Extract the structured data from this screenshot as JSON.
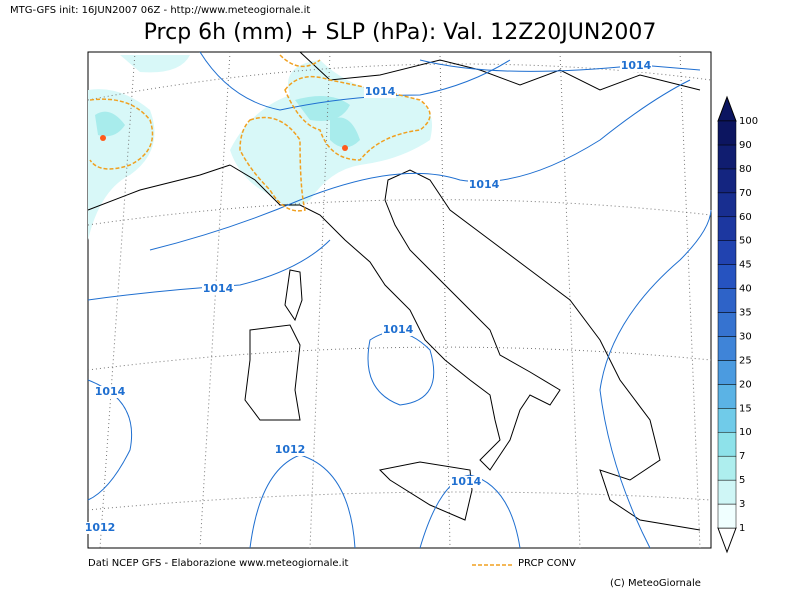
{
  "header": {
    "info": "MTG-GFS init: 16JUN2007 06Z - http://www.meteogiornale.it",
    "title": "Prcp 6h (mm) + SLP (hPa): Val. 12Z20JUN2007"
  },
  "isobar_labels": [
    "1014",
    "1014",
    "1014",
    "1014",
    "1014",
    "1014",
    "1012",
    "1014",
    "1012"
  ],
  "colorbar": {
    "labels": [
      1,
      3,
      5,
      7,
      10,
      15,
      20,
      25,
      30,
      35,
      40,
      45,
      50,
      60,
      70,
      80,
      90,
      100
    ],
    "colors": [
      "#f0ffff",
      "#cff6f6",
      "#aeeeee",
      "#8ee2ea",
      "#70cbe9",
      "#5bb3e5",
      "#4b9be0",
      "#3f84d8",
      "#3673d0",
      "#2e63c8",
      "#2653c0",
      "#2143b0",
      "#1c37a0",
      "#182e90",
      "#142580",
      "#101d70",
      "#0c1560"
    ]
  },
  "footer": {
    "source": "Dati NCEP GFS - Elaborazione www.meteogiornale.it",
    "legend": "PRCP CONV",
    "copyright": "(C) MeteoGiornale"
  }
}
